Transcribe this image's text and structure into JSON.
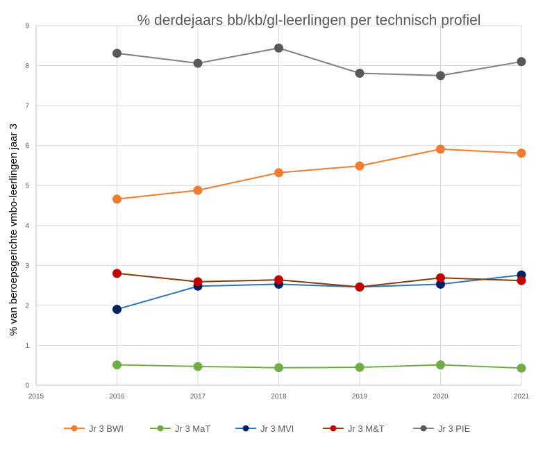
{
  "chart_data": {
    "type": "line",
    "title": "% derdejaars bb/kb/gl-leerlingen per technisch profiel",
    "xlabel": "",
    "ylabel": "% van beroepsgerichte vmbo-leerlingen jaar 3",
    "xlim": [
      2015,
      2021
    ],
    "ylim": [
      0,
      9
    ],
    "x_ticks": [
      2015,
      2016,
      2017,
      2018,
      2019,
      2020,
      2021
    ],
    "y_ticks": [
      0,
      1,
      2,
      3,
      4,
      5,
      6,
      7,
      8,
      9
    ],
    "x": [
      2016,
      2017,
      2018,
      2019,
      2020,
      2021
    ],
    "grid": "vertical and horizontal",
    "legend_position": "bottom",
    "series": [
      {
        "name": "Jr 3 BWI",
        "color": "#ed7d31",
        "marker_color": "#ed7d31",
        "values": [
          4.66,
          4.88,
          5.32,
          5.49,
          5.91,
          5.81
        ]
      },
      {
        "name": "Jr 3 MaT",
        "color": "#70ad47",
        "marker_color": "#70ad47",
        "values": [
          0.51,
          0.47,
          0.44,
          0.45,
          0.51,
          0.43
        ]
      },
      {
        "name": "Jr 3 MVI",
        "color": "#2e75b6",
        "marker_color": "#002060",
        "values": [
          1.9,
          2.48,
          2.53,
          2.46,
          2.53,
          2.76
        ]
      },
      {
        "name": "Jr 3 M&T",
        "color": "#843c0c",
        "marker_color": "#c00000",
        "values": [
          2.8,
          2.59,
          2.64,
          2.46,
          2.69,
          2.62
        ]
      },
      {
        "name": "Jr 3 PIE",
        "color": "#7f7f7f",
        "marker_color": "#595959",
        "values": [
          8.31,
          8.06,
          8.44,
          7.81,
          7.75,
          8.1
        ]
      }
    ]
  }
}
